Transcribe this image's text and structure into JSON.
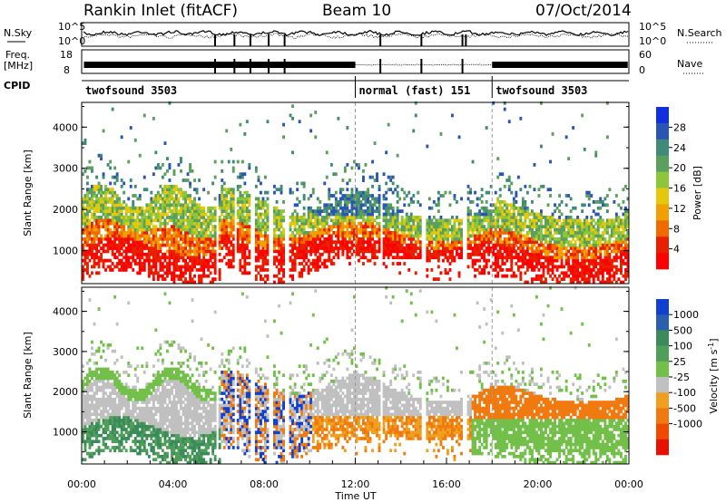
{
  "header": {
    "station": "Rankin Inlet (fitACF)",
    "beam": "Beam 10",
    "date": "07/Oct/2014"
  },
  "sky_panel": {
    "left_label": "N.Sky",
    "right_label": "N.Search",
    "ticks_left": [
      "10^5",
      "10^0"
    ],
    "ticks_right": [
      "10^5",
      "10^0"
    ]
  },
  "freq_panel": {
    "left_label_top": "Freq.",
    "left_label_bottom": "[MHz]",
    "ticks_left": [
      "18",
      "8"
    ],
    "ticks_right": [
      "60",
      "0"
    ],
    "right_label": "Nave"
  },
  "cpid": {
    "label": "CPID",
    "segments": [
      {
        "name": "twofsound 3503",
        "start": 0.0,
        "end": 12.0
      },
      {
        "name": "normal (fast) 151",
        "start": 12.0,
        "end": 18.0
      },
      {
        "name": "twofsound 3503",
        "start": 18.0,
        "end": 24.0
      }
    ]
  },
  "chart_data": [
    {
      "type": "heatmap",
      "quantity": "Power",
      "ylabel": "Slant Range [km]",
      "yticks": [
        "1000",
        "2000",
        "3000",
        "4000"
      ],
      "ylim": [
        200,
        4600
      ],
      "xlim": [
        0,
        24
      ],
      "colorbar": {
        "label": "Power [dB]",
        "ticks": [
          "4",
          "8",
          "12",
          "16",
          "20",
          "24",
          "28"
        ],
        "colors": [
          "#1030e0",
          "#2b55b5",
          "#3f8a78",
          "#5aa05c",
          "#8dc63a",
          "#e6c80a",
          "#f0a000",
          "#f06a00",
          "#e82000",
          "#ff0000"
        ]
      }
    },
    {
      "type": "heatmap",
      "quantity": "Velocity",
      "ylabel": "Slant Range [km]",
      "yticks": [
        "1000",
        "2000",
        "3000",
        "4000"
      ],
      "ylim": [
        200,
        4600
      ],
      "xlim": [
        0,
        24
      ],
      "xlabel": "Time UT",
      "xticks": [
        "00:00",
        "04:00",
        "08:00",
        "12:00",
        "16:00",
        "20:00",
        "00:00"
      ],
      "colorbar": {
        "label_main": "Velocity [m s",
        "label_sup": "-1",
        "label_end": "]",
        "ticks": [
          "1000",
          "500",
          "100",
          "25",
          "-25",
          "-100",
          "-500",
          "-1000"
        ],
        "colors": [
          "#1040d0",
          "#2a5fb0",
          "#3a8a5a",
          "#4f9e5a",
          "#72c04a",
          "#c0c0c0",
          "#f0a020",
          "#f07a10",
          "#f04a00",
          "#e81000"
        ]
      }
    }
  ]
}
